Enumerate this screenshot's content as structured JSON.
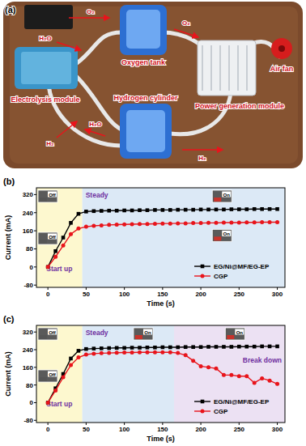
{
  "panel_labels": [
    "(a)",
    "(b)",
    "(c)"
  ],
  "diagram": {
    "labels": [
      "Oxygen tank",
      "Electrolysis module",
      "Air fan",
      "Power generation module",
      "Hydrogen cylinder"
    ],
    "flows": [
      "O₂",
      "H₂O",
      "O₂",
      "H₂O",
      "H₂",
      "H₂"
    ]
  },
  "chart_data": [
    {
      "type": "line",
      "x_label": "Time (s)",
      "y_label": "Current (mA)",
      "x": [
        0,
        10,
        20,
        30,
        40,
        50,
        60,
        70,
        80,
        90,
        100,
        110,
        120,
        130,
        140,
        150,
        160,
        170,
        180,
        190,
        200,
        210,
        220,
        230,
        240,
        250,
        260,
        270,
        280,
        290,
        300
      ],
      "series": [
        {
          "name": "EG/Ni@MF/EG-EP",
          "color": "#000000",
          "marker": "square",
          "values": [
            0,
            70,
            130,
            195,
            235,
            245,
            247,
            248,
            249,
            249,
            250,
            250,
            251,
            251,
            252,
            252,
            252,
            253,
            253,
            253,
            254,
            254,
            254,
            254,
            255,
            255,
            255,
            256,
            256,
            256,
            256
          ]
        },
        {
          "name": "CGP",
          "color": "#e8141b",
          "marker": "circle",
          "values": [
            0,
            45,
            95,
            145,
            170,
            178,
            182,
            184,
            186,
            187,
            188,
            189,
            190,
            190,
            191,
            192,
            192,
            193,
            193,
            194,
            194,
            195,
            195,
            196,
            196,
            196,
            197,
            197,
            198,
            198,
            198
          ]
        }
      ],
      "xlim": [
        -15,
        310
      ],
      "ylim": [
        -90,
        350
      ],
      "xticks": [
        0,
        50,
        100,
        150,
        200,
        250,
        300
      ],
      "yticks": [
        -80,
        0,
        80,
        160,
        240,
        320
      ],
      "legend": "lower right",
      "regions": [
        {
          "label": "Start up",
          "start": -15,
          "end": 45,
          "color": "#fdf8cf"
        },
        {
          "label": "Steady",
          "start": 45,
          "end": 310,
          "color": "#dce9f6"
        }
      ],
      "annotations": [
        "Off",
        "Off",
        "On",
        "On"
      ]
    },
    {
      "type": "line",
      "x_label": "Time (s)",
      "y_label": "Current (mA)",
      "x": [
        0,
        10,
        20,
        30,
        40,
        50,
        60,
        70,
        80,
        90,
        100,
        110,
        120,
        130,
        140,
        150,
        160,
        170,
        180,
        190,
        200,
        210,
        220,
        230,
        240,
        250,
        260,
        270,
        280,
        290,
        300
      ],
      "series": [
        {
          "name": "EG/Ni@MF/EG-EP",
          "color": "#000000",
          "marker": "square",
          "values": [
            0,
            65,
            130,
            200,
            235,
            243,
            245,
            246,
            247,
            248,
            248,
            249,
            249,
            250,
            250,
            251,
            251,
            251,
            252,
            252,
            252,
            253,
            253,
            253,
            253,
            254,
            254,
            254,
            255,
            255,
            255
          ]
        },
        {
          "name": "CGP",
          "color": "#e8141b",
          "marker": "circle",
          "values": [
            0,
            55,
            115,
            170,
            205,
            218,
            222,
            224,
            225,
            226,
            227,
            227,
            228,
            228,
            228,
            228,
            228,
            225,
            215,
            190,
            165,
            160,
            155,
            125,
            125,
            120,
            120,
            90,
            110,
            100,
            85
          ]
        }
      ],
      "xlim": [
        -15,
        310
      ],
      "ylim": [
        -90,
        350
      ],
      "xticks": [
        0,
        50,
        100,
        150,
        200,
        250,
        300
      ],
      "yticks": [
        -80,
        0,
        80,
        160,
        240,
        320
      ],
      "legend": "lower right",
      "regions": [
        {
          "label": "Start up",
          "start": -15,
          "end": 45,
          "color": "#fdf8cf"
        },
        {
          "label": "Steady",
          "start": 45,
          "end": 165,
          "color": "#dce9f6"
        },
        {
          "label": "Break down",
          "start": 165,
          "end": 310,
          "color": "#ece1f3"
        }
      ],
      "annotations": [
        "Off",
        "Off",
        "On",
        "On"
      ]
    }
  ]
}
